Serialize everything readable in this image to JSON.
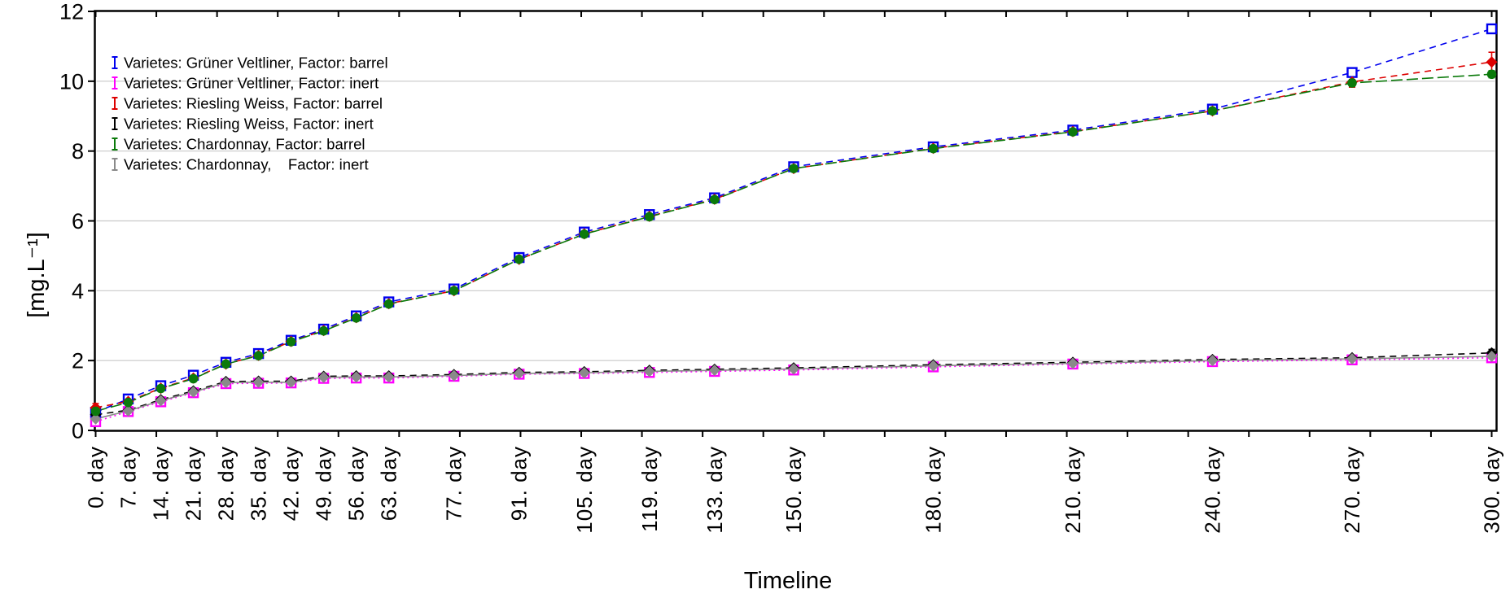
{
  "page": {
    "background": "#ffffff"
  },
  "chart_data": {
    "type": "line",
    "title": "",
    "xlabel": "Timeline",
    "ylabel": "[mg.L⁻¹]",
    "xlim": [
      0,
      300
    ],
    "ylim": [
      0,
      12
    ],
    "yticks": [
      0,
      2,
      4,
      6,
      8,
      10,
      12
    ],
    "x": [
      0,
      7,
      14,
      21,
      28,
      35,
      42,
      49,
      56,
      63,
      77,
      91,
      105,
      119,
      133,
      150,
      180,
      210,
      240,
      270,
      300
    ],
    "x_tick_labels": [
      "0. day",
      "7. day",
      "14. day",
      "21. day",
      "28. day",
      "35. day",
      "42. day",
      "49. day",
      "56. day",
      "63. day",
      "77. day",
      "91. day",
      "105. day",
      "119. day",
      "133. day",
      "150. day",
      "180. day",
      "210. day",
      "240. day",
      "270. day",
      "300. day"
    ],
    "x_minor_ticks": 24,
    "grid": {
      "horizontal": true,
      "vertical": false,
      "color": "#c9c9c9"
    },
    "legend": {
      "position": "top-left-inside",
      "glyph": "error-bar"
    },
    "series": [
      {
        "name": "Varietes: Grüner Veltliner, Factor: barrel",
        "color": "#0000EE",
        "line_style": "dashed",
        "marker": "square-open",
        "values": [
          0.52,
          0.9,
          1.28,
          1.58,
          1.95,
          2.2,
          2.58,
          2.9,
          3.28,
          3.68,
          4.05,
          4.95,
          5.68,
          6.18,
          6.66,
          7.55,
          8.12,
          8.6,
          9.2,
          10.25,
          11.5
        ],
        "errors": [
          0.08,
          0.06,
          0.06,
          0.06,
          0.06,
          0.06,
          0.06,
          0.06,
          0.06,
          0.06,
          0.06,
          0.06,
          0.06,
          0.06,
          0.06,
          0.06,
          0.06,
          0.06,
          0.06,
          0.08,
          0.1
        ]
      },
      {
        "name": "Varietes: Grüner Veltliner, Factor: inert",
        "color": "#FF00FF",
        "line_style": "dotted",
        "marker": "square-open",
        "values": [
          0.25,
          0.54,
          0.82,
          1.08,
          1.34,
          1.35,
          1.36,
          1.49,
          1.5,
          1.5,
          1.55,
          1.61,
          1.63,
          1.66,
          1.69,
          1.73,
          1.82,
          1.9,
          1.97,
          2.02,
          2.08
        ],
        "errors": [
          0.05,
          0.05,
          0.05,
          0.05,
          0.05,
          0.05,
          0.05,
          0.05,
          0.05,
          0.05,
          0.05,
          0.05,
          0.05,
          0.05,
          0.05,
          0.05,
          0.05,
          0.05,
          0.05,
          0.05,
          0.05
        ]
      },
      {
        "name": "Varietes: Riesling Weiss, Factor: barrel",
        "color": "#DD0000",
        "line_style": "dashed",
        "marker": "diamond",
        "values": [
          0.65,
          0.83,
          1.21,
          1.5,
          1.9,
          2.15,
          2.55,
          2.86,
          3.23,
          3.63,
          4.0,
          4.9,
          5.63,
          6.13,
          6.62,
          7.5,
          8.08,
          8.56,
          9.15,
          9.98,
          10.55
        ],
        "errors": [
          0.12,
          0.06,
          0.06,
          0.06,
          0.06,
          0.06,
          0.06,
          0.06,
          0.06,
          0.06,
          0.06,
          0.06,
          0.06,
          0.06,
          0.06,
          0.06,
          0.06,
          0.06,
          0.06,
          0.15,
          0.28
        ]
      },
      {
        "name": "Varietes: Riesling Weiss, Factor: inert",
        "color": "#000000",
        "line_style": "dashed",
        "marker": "diamond",
        "values": [
          0.45,
          0.58,
          0.88,
          1.13,
          1.4,
          1.41,
          1.41,
          1.55,
          1.56,
          1.56,
          1.6,
          1.66,
          1.68,
          1.72,
          1.75,
          1.79,
          1.88,
          1.95,
          2.03,
          2.08,
          2.22
        ],
        "errors": [
          0.05,
          0.05,
          0.05,
          0.05,
          0.05,
          0.05,
          0.05,
          0.05,
          0.05,
          0.05,
          0.05,
          0.05,
          0.05,
          0.05,
          0.05,
          0.05,
          0.05,
          0.05,
          0.05,
          0.05,
          0.1
        ]
      },
      {
        "name": "Varietes: Chardonnay, Factor: barrel",
        "color": "#0B7A0B",
        "line_style": "long-dash",
        "marker": "circle",
        "values": [
          0.55,
          0.8,
          1.2,
          1.48,
          1.9,
          2.14,
          2.54,
          2.85,
          3.22,
          3.62,
          4.0,
          4.9,
          5.62,
          6.12,
          6.61,
          7.5,
          8.07,
          8.55,
          9.15,
          9.95,
          10.2
        ],
        "errors": [
          0.06,
          0.06,
          0.06,
          0.06,
          0.06,
          0.06,
          0.06,
          0.06,
          0.06,
          0.06,
          0.06,
          0.06,
          0.06,
          0.06,
          0.06,
          0.06,
          0.06,
          0.06,
          0.06,
          0.1,
          0.1
        ]
      },
      {
        "name": "Varietes: Chardonnay,    Factor: inert",
        "color": "#8A8A8A",
        "line_style": "solid",
        "marker": "diamond",
        "values": [
          0.33,
          0.56,
          0.85,
          1.1,
          1.37,
          1.38,
          1.38,
          1.52,
          1.53,
          1.53,
          1.57,
          1.63,
          1.65,
          1.69,
          1.72,
          1.76,
          1.85,
          1.92,
          2.0,
          2.05,
          2.12
        ],
        "errors": [
          0.05,
          0.05,
          0.05,
          0.05,
          0.05,
          0.05,
          0.05,
          0.05,
          0.05,
          0.05,
          0.05,
          0.05,
          0.05,
          0.05,
          0.05,
          0.05,
          0.05,
          0.05,
          0.05,
          0.05,
          0.05
        ]
      }
    ]
  }
}
